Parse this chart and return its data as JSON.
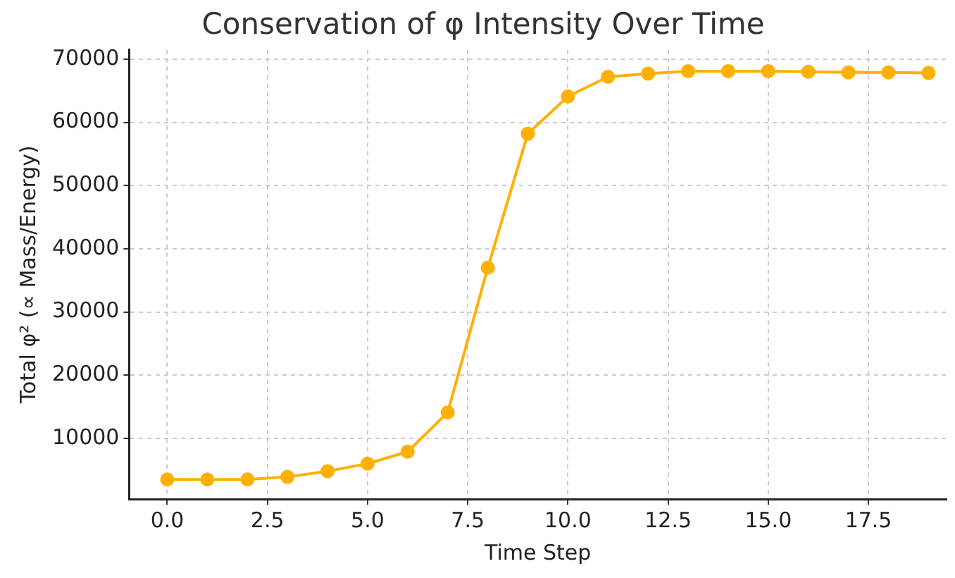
{
  "chart_data": {
    "type": "line",
    "title": "Conservation of φ Intensity Over Time",
    "xlabel": "Time Step",
    "ylabel": "Total φ² (∝ Mass/Energy)",
    "x": [
      0,
      1,
      2,
      3,
      4,
      5,
      6,
      7,
      8,
      9,
      10,
      11,
      12,
      13,
      14,
      15,
      16,
      17,
      18,
      19
    ],
    "series": [
      {
        "color": "#ffb000",
        "values": [
          3500,
          3500,
          3500,
          3900,
          4800,
          6000,
          7900,
          14100,
          37000,
          58200,
          64100,
          67200,
          67700,
          68100,
          68100,
          68100,
          68000,
          67900,
          67900,
          67800
        ]
      }
    ],
    "xlim": [
      -0.95,
      19.45
    ],
    "xticks": [
      {
        "value": 0,
        "label": "0.0"
      },
      {
        "value": 2.5,
        "label": "2.5"
      },
      {
        "value": 5,
        "label": "5.0"
      },
      {
        "value": 7.5,
        "label": "7.5"
      },
      {
        "value": 10,
        "label": "10.0"
      },
      {
        "value": 12.5,
        "label": "12.5"
      },
      {
        "value": 15,
        "label": "15.0"
      },
      {
        "value": 17.5,
        "label": "17.5"
      }
    ],
    "ylim": [
      400,
      71500
    ],
    "yticks": [
      10000,
      20000,
      30000,
      40000,
      50000,
      60000,
      70000
    ],
    "grid": true,
    "legend": false,
    "marker": "circle",
    "line_style": "solid"
  }
}
